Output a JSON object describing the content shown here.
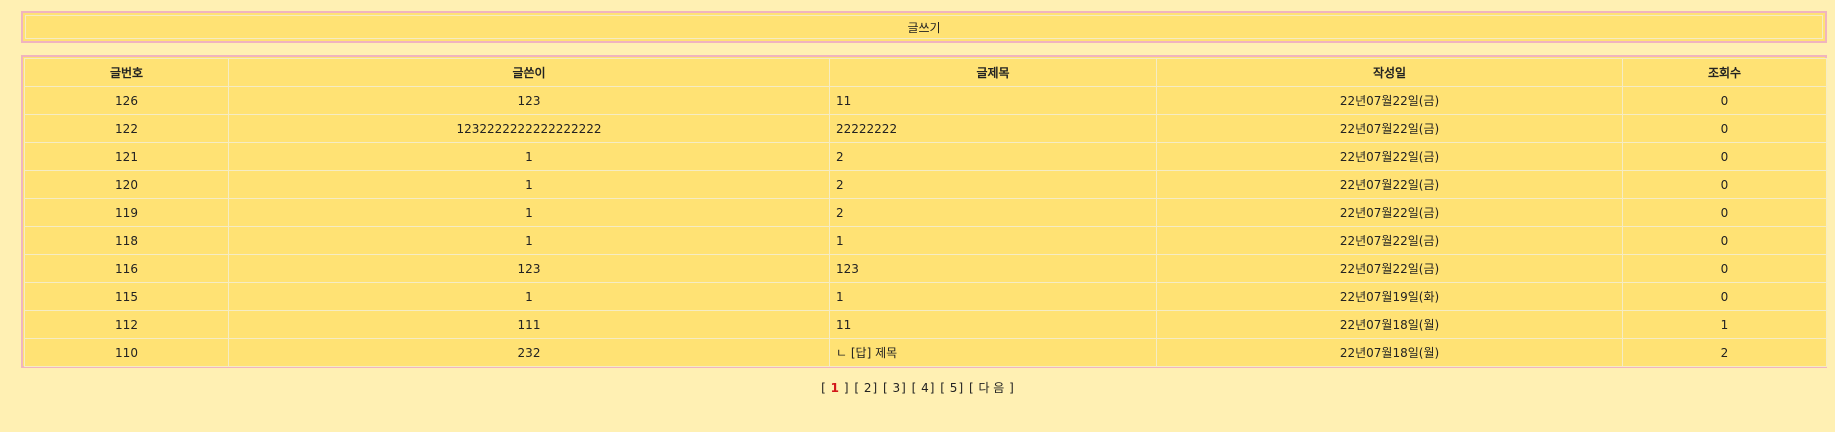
{
  "write_label": "글쓰기",
  "table": {
    "headers": [
      "글번호",
      "글쓴이",
      "글제목",
      "작성일",
      "조회수"
    ],
    "rows": [
      {
        "no": "126",
        "author": "123",
        "title": "11",
        "date": "22년07월22일(금)",
        "views": "0"
      },
      {
        "no": "122",
        "author": "1232222222222222222",
        "title": "22222222",
        "date": "22년07월22일(금)",
        "views": "0"
      },
      {
        "no": "121",
        "author": "1",
        "title": "2",
        "date": "22년07월22일(금)",
        "views": "0"
      },
      {
        "no": "120",
        "author": "1",
        "title": "2",
        "date": "22년07월22일(금)",
        "views": "0"
      },
      {
        "no": "119",
        "author": "1",
        "title": "2",
        "date": "22년07월22일(금)",
        "views": "0"
      },
      {
        "no": "118",
        "author": "1",
        "title": "1",
        "date": "22년07월22일(금)",
        "views": "0"
      },
      {
        "no": "116",
        "author": "123",
        "title": "123",
        "date": "22년07월22일(금)",
        "views": "0"
      },
      {
        "no": "115",
        "author": "1",
        "title": "1",
        "date": "22년07월19일(화)",
        "views": "0"
      },
      {
        "no": "112",
        "author": "111",
        "title": "11",
        "date": "22년07월18일(월)",
        "views": "1"
      },
      {
        "no": "110",
        "author": "232",
        "title": "ㄴ [답] 제목",
        "date": "22년07월18일(월)",
        "views": "2"
      }
    ]
  },
  "pagination": {
    "current": "1",
    "pages": [
      "2",
      "3",
      "4",
      "5"
    ],
    "next_label": "다 음"
  },
  "colors": {
    "background": "#fff0b3",
    "table_fill": "#ffe274",
    "border": "#f0b4bf",
    "current_page": "#d2171b"
  }
}
